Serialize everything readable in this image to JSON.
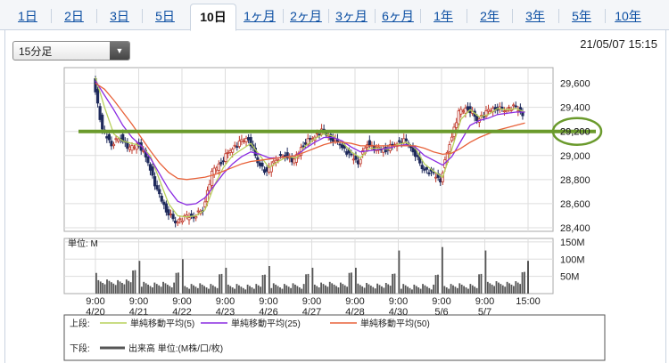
{
  "tabs": [
    {
      "label": "1日",
      "active": false
    },
    {
      "label": "2日",
      "active": false
    },
    {
      "label": "3日",
      "active": false
    },
    {
      "label": "5日",
      "active": false
    },
    {
      "label": "10日",
      "active": true
    },
    {
      "label": "1ヶ月",
      "active": false
    },
    {
      "label": "2ヶ月",
      "active": false
    },
    {
      "label": "3ヶ月",
      "active": false
    },
    {
      "label": "6ヶ月",
      "active": false
    },
    {
      "label": "1年",
      "active": false
    },
    {
      "label": "2年",
      "active": false
    },
    {
      "label": "3年",
      "active": false
    },
    {
      "label": "5年",
      "active": false
    },
    {
      "label": "10年",
      "active": false
    }
  ],
  "interval_select": {
    "value": "15分足"
  },
  "timestamp": "21/05/07 15:15",
  "colors": {
    "up": "#c0392b",
    "down": "#1f2a5c",
    "ma5": "#b7d05a",
    "ma25": "#8a2be2",
    "ma50": "#e8623a",
    "annotation": "#6a9a2c",
    "volume": "#555555",
    "grid": "#dddddd"
  },
  "chart_data": {
    "type": "line",
    "ylim": [
      28400,
      29700
    ],
    "y_ticks": [
      "29,600",
      "29,400",
      "29,200",
      "29,000",
      "28,800",
      "28,600",
      "28,400"
    ],
    "y_tick_values": [
      29600,
      29400,
      29200,
      29000,
      28800,
      28600,
      28400
    ],
    "sessions": [
      "4/20",
      "4/21",
      "4/22",
      "4/23",
      "4/26",
      "4/27",
      "4/28",
      "4/30",
      "5/6",
      "5/7"
    ],
    "x_ticks": [
      {
        "time": "9:00",
        "date": "4/20"
      },
      {
        "time": "9:00",
        "date": "4/21"
      },
      {
        "time": "9:00",
        "date": "4/22"
      },
      {
        "time": "9:00",
        "date": "4/23"
      },
      {
        "time": "9:00",
        "date": "4/26"
      },
      {
        "time": "9:00",
        "date": "4/27"
      },
      {
        "time": "9:00",
        "date": "4/28"
      },
      {
        "time": "9:00",
        "date": "4/30"
      },
      {
        "time": "9:00",
        "date": "5/6"
      },
      {
        "time": "9:00",
        "date": "5/7"
      },
      {
        "time": "15:00",
        "date": ""
      }
    ],
    "price_path": [
      29650,
      29200,
      29100,
      29150,
      29050,
      29100,
      28950,
      28700,
      28550,
      28450,
      28480,
      28500,
      28550,
      28850,
      28950,
      29050,
      29100,
      29150,
      28950,
      28850,
      28980,
      29000,
      28950,
      29100,
      29150,
      29200,
      29150,
      29100,
      29000,
      28950,
      29100,
      29050,
      29050,
      29100,
      29120,
      29050,
      28900,
      28850,
      28800,
      29100,
      29350,
      29400,
      29300,
      29350,
      29400,
      29380,
      29400,
      29350
    ],
    "series": [
      {
        "name": "単純移動平均(5)",
        "values": [
          29650,
          29400,
          29180,
          29120,
          29100,
          29080,
          29000,
          28800,
          28600,
          28500,
          28490,
          28500,
          28550,
          28750,
          28900,
          29000,
          29050,
          29100,
          29000,
          28900,
          28950,
          28990,
          28980,
          29080,
          29140,
          29180,
          29160,
          29110,
          29030,
          28980,
          29060,
          29060,
          29050,
          29090,
          29110,
          29060,
          28930,
          28870,
          28820,
          29050,
          29300,
          29380,
          29320,
          29340,
          29390,
          29380,
          29390,
          29360
        ]
      },
      {
        "name": "単純移動平均(25)",
        "values": [
          29620,
          29500,
          29380,
          29250,
          29150,
          29080,
          28980,
          28850,
          28720,
          28620,
          28590,
          28600,
          28650,
          28750,
          28850,
          28930,
          28990,
          29030,
          29010,
          28980,
          28980,
          28990,
          29000,
          29060,
          29110,
          29150,
          29150,
          29120,
          29070,
          29030,
          29040,
          29050,
          29060,
          29080,
          29090,
          29070,
          29000,
          28960,
          28920,
          28990,
          29120,
          29250,
          29290,
          29310,
          29340,
          29350,
          29360,
          29360
        ]
      },
      {
        "name": "単純移動平均(50)",
        "values": [
          29600,
          29550,
          29460,
          29360,
          29260,
          29150,
          29040,
          28940,
          28860,
          28810,
          28800,
          28810,
          28820,
          28840,
          28870,
          28900,
          28930,
          28950,
          28960,
          28970,
          28980,
          28990,
          29000,
          29030,
          29060,
          29090,
          29110,
          29110,
          29100,
          29080,
          29080,
          29080,
          29080,
          29080,
          29080,
          29080,
          29060,
          29030,
          29010,
          29020,
          29060,
          29110,
          29150,
          29180,
          29210,
          29230,
          29250,
          29270
        ]
      }
    ],
    "volume": {
      "unit_label": "単位: M",
      "ylim": [
        0,
        160
      ],
      "y_ticks": [
        "150M",
        "100M",
        "50M"
      ],
      "y_tick_values": [
        150,
        100,
        50
      ],
      "session_open_values": [
        60,
        95,
        100,
        75,
        80,
        75,
        75,
        125,
        135,
        125,
        95
      ],
      "base_values": [
        25,
        18,
        14,
        12,
        14,
        18,
        15,
        12,
        14,
        20,
        35
      ]
    },
    "annotation": {
      "label_value": "29,200",
      "price": 29200
    },
    "legend": {
      "upper_label": "上段:",
      "lower_label": "下段:",
      "upper_entries": [
        "単純移動平均(5)",
        "単純移動平均(25)",
        "単純移動平均(50)"
      ],
      "lower_entries": [
        "出来高 単位:(M株/口/枚)"
      ]
    }
  }
}
